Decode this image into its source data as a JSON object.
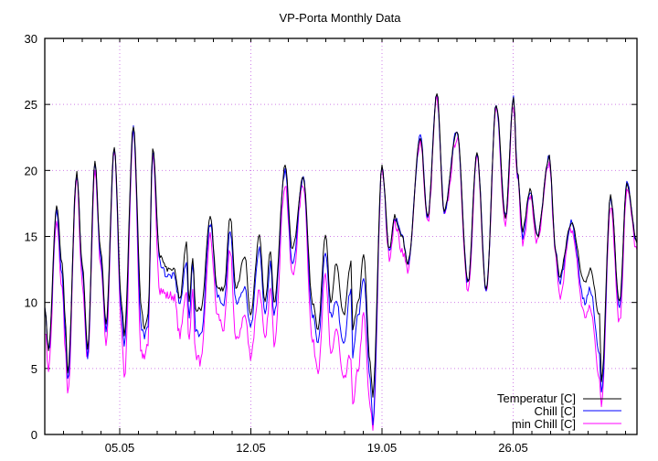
{
  "chart_data": {
    "type": "line",
    "title": "VP-Porta Monthly Data",
    "xlabel": "",
    "ylabel": "",
    "ylim": [
      0,
      30
    ],
    "xlim_days_from_01_05": [
      0,
      31.61
    ],
    "y_ticks": [
      0,
      5,
      10,
      15,
      20,
      25,
      30
    ],
    "x_ticks": [
      {
        "day": 4,
        "label": "05.05"
      },
      {
        "day": 11,
        "label": "12.05"
      },
      {
        "day": 18,
        "label": "19.05"
      },
      {
        "day": 25,
        "label": "26.05"
      }
    ],
    "grid": true,
    "legend_position": "bottom-right",
    "series": [
      {
        "name": "Temperatur [C]",
        "color": "#000000"
      },
      {
        "name": "Chill [C]",
        "color": "#0000ff"
      },
      {
        "name": "min Chill [C]",
        "color": "#ff00ff"
      }
    ],
    "points_columns": [
      "day",
      "Temperatur",
      "Chill",
      "min Chill"
    ],
    "points": [
      [
        0,
        9.7,
        9.5,
        8
      ],
      [
        0.2,
        6.5,
        6.2,
        5
      ],
      [
        0.63,
        17.3,
        16.8,
        16
      ],
      [
        0.93,
        13,
        12,
        11
      ],
      [
        1.12,
        8,
        7,
        6
      ],
      [
        1.22,
        4.5,
        4,
        2.8
      ],
      [
        1.71,
        19.8,
        19.7,
        19.3
      ],
      [
        2.0,
        13,
        12.5,
        11.5
      ],
      [
        2.29,
        6.5,
        6,
        5.5
      ],
      [
        2.68,
        20.7,
        20.5,
        20
      ],
      [
        2.98,
        14,
        13.5,
        13
      ],
      [
        3.27,
        8.5,
        8,
        7
      ],
      [
        3.71,
        21.8,
        21.7,
        21.5
      ],
      [
        4.1,
        10,
        9,
        8
      ],
      [
        4.24,
        7.5,
        6.5,
        4
      ],
      [
        4.73,
        23.3,
        23.2,
        23
      ],
      [
        5.17,
        9.5,
        8,
        6
      ],
      [
        5.32,
        8,
        7.5,
        6
      ],
      [
        5.51,
        9,
        8,
        7
      ],
      [
        5.76,
        21.6,
        21.5,
        21
      ],
      [
        6.15,
        13.5,
        13,
        11
      ],
      [
        6.54,
        12.5,
        12,
        10.5
      ],
      [
        6.88,
        12.5,
        12,
        10.5
      ],
      [
        7.22,
        10.3,
        10,
        7.5
      ],
      [
        7.56,
        14.5,
        13,
        11
      ],
      [
        7.71,
        10,
        9,
        7
      ],
      [
        7.9,
        13.5,
        13,
        11
      ],
      [
        8.05,
        9.5,
        8,
        6
      ],
      [
        8.34,
        9.5,
        7.5,
        5.5
      ],
      [
        8.83,
        16.5,
        16,
        15
      ],
      [
        9.22,
        11,
        10.5,
        9
      ],
      [
        9.56,
        11,
        10,
        8
      ],
      [
        9.9,
        16.5,
        15.5,
        14
      ],
      [
        10.2,
        11,
        10,
        7
      ],
      [
        10.68,
        13.5,
        11,
        9
      ],
      [
        10.98,
        9,
        8,
        6
      ],
      [
        11.46,
        15,
        14,
        11
      ],
      [
        11.76,
        10,
        9,
        7
      ],
      [
        12.05,
        14,
        13,
        11
      ],
      [
        12.24,
        10,
        9,
        7
      ],
      [
        12.83,
        20.3,
        20,
        19
      ],
      [
        13.22,
        14,
        13,
        12
      ],
      [
        13.8,
        19.5,
        19.5,
        19
      ],
      [
        14.29,
        10,
        9,
        7
      ],
      [
        14.59,
        8,
        7,
        5
      ],
      [
        14.98,
        15.2,
        14,
        12
      ],
      [
        15.27,
        10,
        9,
        6
      ],
      [
        15.56,
        13,
        10,
        8
      ],
      [
        15.95,
        9,
        7,
        4
      ],
      [
        16.34,
        13,
        11,
        6
      ],
      [
        16.44,
        8,
        6,
        2
      ],
      [
        16.73,
        10,
        9,
        5
      ],
      [
        17.02,
        13.5,
        12,
        9
      ],
      [
        17.37,
        5.5,
        4,
        2
      ],
      [
        17.51,
        3,
        1,
        0.5
      ],
      [
        18.0,
        20.3,
        20.3,
        20
      ],
      [
        18.39,
        14,
        14,
        13.5
      ],
      [
        18.68,
        16.5,
        16.5,
        16
      ],
      [
        19.07,
        15,
        15,
        14
      ],
      [
        19.37,
        13,
        13,
        12.5
      ],
      [
        20.05,
        22.5,
        22.5,
        22.3
      ],
      [
        20.44,
        16.5,
        16.5,
        16
      ],
      [
        20.93,
        25.8,
        25.8,
        25.5
      ],
      [
        21.32,
        17,
        17,
        16.5
      ],
      [
        22.0,
        23,
        23,
        22.5
      ],
      [
        22.59,
        11.5,
        11.5,
        11
      ],
      [
        23.07,
        21.3,
        21.3,
        21
      ],
      [
        23.56,
        11,
        11,
        10.5
      ],
      [
        24.1,
        25,
        25,
        24.8
      ],
      [
        24.59,
        16.5,
        16.5,
        16
      ],
      [
        25.02,
        25.5,
        25.5,
        25
      ],
      [
        25.22,
        20,
        20,
        19.5
      ],
      [
        25.51,
        15.5,
        15,
        14.5
      ],
      [
        25.9,
        18.5,
        18.5,
        18
      ],
      [
        26.29,
        15,
        15,
        14.5
      ],
      [
        26.93,
        21,
        21,
        20.5
      ],
      [
        27.27,
        14,
        14,
        13.5
      ],
      [
        27.46,
        12,
        11.5,
        10.5
      ],
      [
        28.1,
        16,
        16,
        15.5
      ],
      [
        28.83,
        11.5,
        10,
        9
      ],
      [
        29.12,
        12.5,
        11,
        9.5
      ],
      [
        29.61,
        9,
        6,
        4.5
      ],
      [
        29.71,
        4,
        3,
        2
      ],
      [
        30.2,
        18,
        18,
        17.5
      ],
      [
        30.68,
        10,
        9.5,
        8.5
      ],
      [
        31.07,
        19,
        19,
        18.5
      ],
      [
        31.61,
        14.5,
        14.5,
        14
      ]
    ]
  }
}
